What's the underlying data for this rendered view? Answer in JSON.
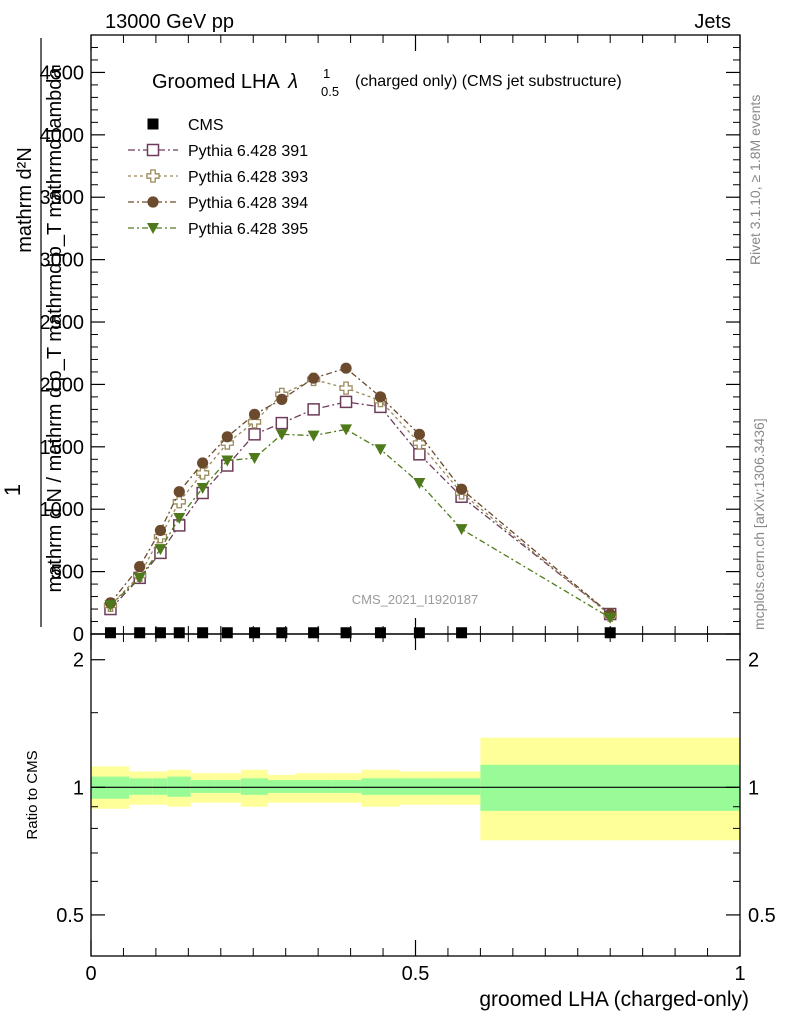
{
  "header": {
    "left": "13000 GeV pp",
    "right": "Jets"
  },
  "title": {
    "main": "Groomed LHA",
    "lambda": "λ",
    "sup": "1",
    "sub": "0.5",
    "suffix": "(charged only) (CMS jet substructure)"
  },
  "side_labels": {
    "rivet": "Rivet 3.1.10, ≥ 1.8M events",
    "mcplots": "mcplots.cern.ch [arXiv:1306.3436]"
  },
  "watermark": "CMS_2021_I1920187",
  "ylabel_top": {
    "one": "1",
    "frac_num": "mathrm d²N",
    "frac_den": "mathrm d N / mathrm d p_T mathrmd p_T mathrmd lambda"
  },
  "ylabel_ratio": "Ratio to CMS",
  "xlabel": "groomed LHA (charged-only)",
  "colors": {
    "cms": "#000000",
    "p391": "#6e3b5a",
    "p393": "#9b8a5c",
    "p394": "#6b4a2e",
    "p395": "#4f7a1c",
    "band_inner": "#98fb98",
    "band_outer": "#ffff99"
  },
  "chart_data": {
    "type": "scatter",
    "xlim": [
      0,
      1
    ],
    "ylim_main": [
      0,
      4800
    ],
    "yticks_main": [
      "0",
      "500",
      "1000",
      "1500",
      "2000",
      "2500",
      "3000",
      "3500",
      "4000",
      "4500"
    ],
    "ytick_values_main": [
      0,
      500,
      1000,
      1500,
      2000,
      2500,
      3000,
      3500,
      4000,
      4500
    ],
    "ylim_ratio": [
      0.4,
      2.3
    ],
    "ratio_scale": "log",
    "yticks_ratio": [
      "0.5",
      "1",
      "2"
    ],
    "ytick_values_ratio": [
      0.5,
      1,
      2
    ],
    "xticks": [
      "0",
      "0.5",
      "1"
    ],
    "xtick_values": [
      0,
      0.5,
      1
    ],
    "bin_edges": [
      0.0,
      0.0588,
      0.0952,
      0.1176,
      0.1538,
      0.1905,
      0.2308,
      0.2727,
      0.3158,
      0.3704,
      0.4167,
      0.4762,
      0.5263,
      0.6,
      1.0
    ],
    "x": [
      0.03,
      0.075,
      0.107,
      0.136,
      0.172,
      0.21,
      0.252,
      0.294,
      0.343,
      0.393,
      0.446,
      0.506,
      0.571,
      0.8
    ],
    "series": [
      {
        "name": "CMS",
        "key": "cms",
        "marker": "square-filled",
        "values": [
          10,
          10,
          10,
          10,
          10,
          10,
          10,
          10,
          10,
          10,
          10,
          10,
          10,
          10
        ]
      },
      {
        "name": "Pythia 6.428 391",
        "key": "p391",
        "marker": "square-open",
        "values": [
          200,
          450,
          650,
          870,
          1130,
          1350,
          1600,
          1690,
          1800,
          1860,
          1820,
          1440,
          1100,
          160
        ]
      },
      {
        "name": "Pythia 6.428 393",
        "key": "p393",
        "marker": "cross-open",
        "values": [
          230,
          470,
          780,
          1060,
          1290,
          1530,
          1700,
          1920,
          2040,
          1970,
          1870,
          1530,
          1130,
          150
        ]
      },
      {
        "name": "Pythia 6.428 394",
        "key": "p394",
        "marker": "circle-filled",
        "values": [
          250,
          540,
          830,
          1140,
          1370,
          1580,
          1760,
          1880,
          2050,
          2130,
          1900,
          1600,
          1160,
          160
        ]
      },
      {
        "name": "Pythia 6.428 395",
        "key": "p395",
        "marker": "triangle-down-filled",
        "values": [
          230,
          450,
          680,
          930,
          1170,
          1390,
          1410,
          1600,
          1590,
          1640,
          1480,
          1210,
          840,
          130
        ]
      }
    ],
    "ratio_bands": {
      "inner_low": [
        0.94,
        0.96,
        0.96,
        0.95,
        0.97,
        0.97,
        0.96,
        0.97,
        0.97,
        0.97,
        0.96,
        0.96,
        0.96,
        0.88
      ],
      "inner_high": [
        1.06,
        1.05,
        1.05,
        1.06,
        1.04,
        1.04,
        1.05,
        1.04,
        1.04,
        1.04,
        1.05,
        1.05,
        1.05,
        1.13
      ],
      "outer_low": [
        0.89,
        0.91,
        0.91,
        0.9,
        0.92,
        0.92,
        0.9,
        0.92,
        0.92,
        0.92,
        0.9,
        0.91,
        0.91,
        0.75
      ],
      "outer_high": [
        1.12,
        1.09,
        1.09,
        1.1,
        1.08,
        1.08,
        1.1,
        1.07,
        1.08,
        1.08,
        1.1,
        1.09,
        1.09,
        1.31
      ]
    }
  }
}
